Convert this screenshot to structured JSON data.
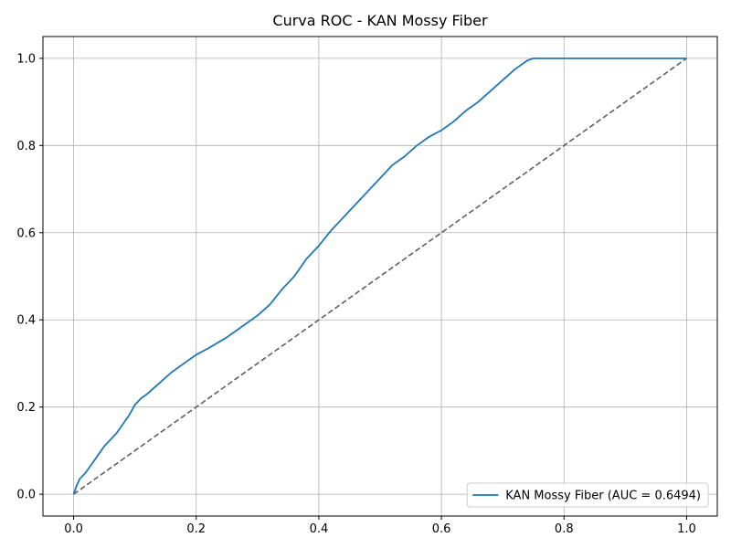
{
  "chart_data": {
    "type": "line",
    "title": "Curva ROC - KAN Mossy Fiber",
    "xlabel": "",
    "ylabel": "",
    "xlim": [
      -0.05,
      1.05
    ],
    "ylim": [
      -0.05,
      1.05
    ],
    "xticks": [
      0.0,
      0.2,
      0.4,
      0.6,
      0.8,
      1.0
    ],
    "yticks": [
      0.0,
      0.2,
      0.4,
      0.6,
      0.8,
      1.0
    ],
    "xtick_labels": [
      "0.0",
      "0.2",
      "0.4",
      "0.6",
      "0.8",
      "1.0"
    ],
    "ytick_labels": [
      "0.0",
      "0.2",
      "0.4",
      "0.6",
      "0.8",
      "1.0"
    ],
    "grid": true,
    "legend_position": "lower-right",
    "series": [
      {
        "name": "KAN Mossy Fiber (AUC = 0.6494)",
        "color": "#1f77b4",
        "style": "solid",
        "x": [
          0.0,
          0.005,
          0.01,
          0.02,
          0.03,
          0.04,
          0.05,
          0.06,
          0.07,
          0.08,
          0.09,
          0.1,
          0.11,
          0.12,
          0.14,
          0.16,
          0.18,
          0.2,
          0.22,
          0.25,
          0.28,
          0.3,
          0.32,
          0.34,
          0.36,
          0.38,
          0.4,
          0.42,
          0.44,
          0.46,
          0.48,
          0.5,
          0.52,
          0.54,
          0.56,
          0.58,
          0.6,
          0.62,
          0.64,
          0.66,
          0.68,
          0.7,
          0.72,
          0.74,
          0.75,
          0.8,
          0.9,
          1.0
        ],
        "y": [
          0.0,
          0.02,
          0.035,
          0.05,
          0.07,
          0.09,
          0.11,
          0.125,
          0.14,
          0.16,
          0.18,
          0.205,
          0.22,
          0.23,
          0.255,
          0.28,
          0.3,
          0.32,
          0.335,
          0.36,
          0.39,
          0.41,
          0.435,
          0.47,
          0.5,
          0.54,
          0.57,
          0.605,
          0.635,
          0.665,
          0.695,
          0.725,
          0.755,
          0.775,
          0.8,
          0.82,
          0.835,
          0.855,
          0.88,
          0.9,
          0.925,
          0.95,
          0.975,
          0.995,
          1.0,
          1.0,
          1.0,
          1.0
        ]
      },
      {
        "name": "",
        "color": "#606060",
        "style": "dashed",
        "x": [
          0.0,
          1.0
        ],
        "y": [
          0.0,
          1.0
        ]
      }
    ]
  }
}
